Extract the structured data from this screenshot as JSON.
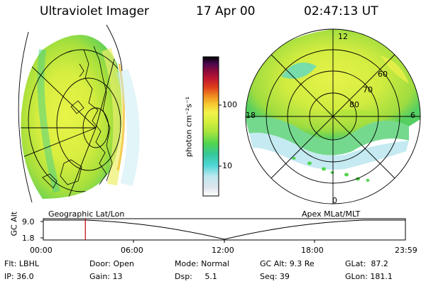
{
  "header": {
    "instrument": "Ultraviolet Imager",
    "date": "17 Apr 00",
    "time": "02:47:13 UT"
  },
  "colorbar": {
    "unit_label": "photon cm⁻²s⁻¹",
    "tick_100": "100",
    "tick_10": "10",
    "colors": [
      "#ffffff",
      "#dfe6ee",
      "#bfe8f0",
      "#4fd6d6",
      "#35c79a",
      "#52d64e",
      "#a8e43c",
      "#d8f03c",
      "#f2f24a",
      "#f8c830",
      "#f08a20",
      "#e0401c",
      "#c01830",
      "#8a0a3c",
      "#4a0850",
      "#1a0830",
      "#000000"
    ]
  },
  "geo_panel": {
    "label": "Geographic Lat/Lon"
  },
  "polar_panel": {
    "label": "Apex MLat/MLT",
    "mlt_top": "12",
    "mlt_left": "18",
    "mlt_right": "6",
    "mlt_bottom": "0",
    "lat_60": "60",
    "lat_70": "70",
    "lat_80": "80"
  },
  "timeline": {
    "axis_label": "GC Alt",
    "y_top": "9.0",
    "y_bottom": "1.8",
    "ticks": [
      "00:00",
      "06:00",
      "12:00",
      "18:00",
      "23:59"
    ],
    "current_time_hours": 2.787
  },
  "info": {
    "flt": "Flt: LBHL",
    "ip": "IP: 36.0",
    "door": "Door: Open",
    "gain": "Gain: 13",
    "mode": "Mode: Normal",
    "dsp": "Dsp:     5.1",
    "gc_alt": "GC Alt: 9.3 Re",
    "seq": "Seq: 39",
    "glat": "GLat:  87.2",
    "glon": "GLon: 181.1"
  }
}
